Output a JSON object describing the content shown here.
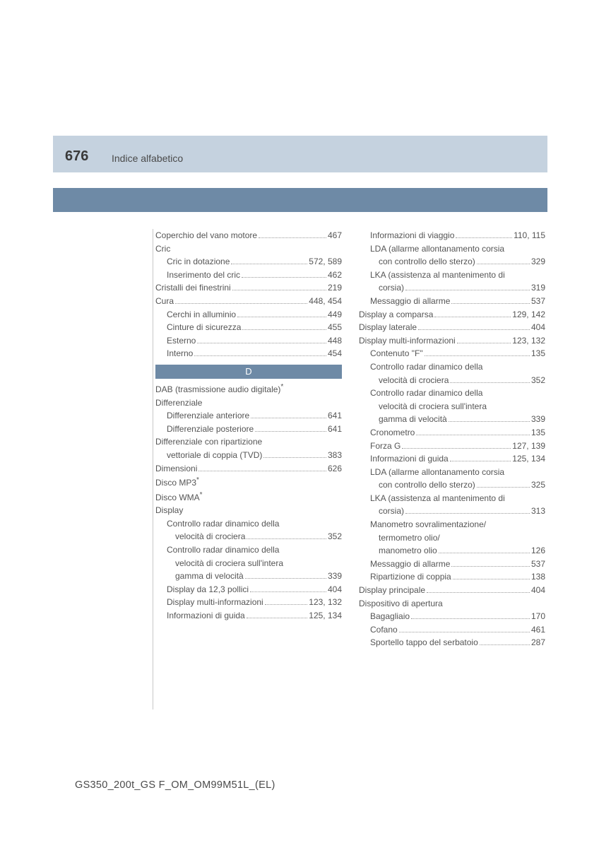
{
  "header": {
    "page_number": "676",
    "title": "Indice alfabetico"
  },
  "colors": {
    "header_band": "#c5d2df",
    "blue_band": "#6e8aa6",
    "text": "#555555",
    "dots": "#999999",
    "vline": "#c8c8c8"
  },
  "section_letter": "D",
  "left_column": [
    {
      "type": "entry",
      "label": "Coperchio del vano motore",
      "page": "467"
    },
    {
      "type": "heading",
      "label": "Cric"
    },
    {
      "type": "sub",
      "label": "Cric in dotazione",
      "page": "572, 589"
    },
    {
      "type": "sub",
      "label": "Inserimento del cric",
      "page": "462"
    },
    {
      "type": "entry",
      "label": "Cristalli dei finestrini",
      "page": "219"
    },
    {
      "type": "entry",
      "label": "Cura",
      "page": "448, 454"
    },
    {
      "type": "sub",
      "label": "Cerchi in alluminio",
      "page": "449"
    },
    {
      "type": "sub",
      "label": "Cinture di sicurezza",
      "page": "455"
    },
    {
      "type": "sub",
      "label": "Esterno",
      "page": "448"
    },
    {
      "type": "sub",
      "label": "Interno",
      "page": "454"
    },
    {
      "type": "letter"
    },
    {
      "type": "heading_ast",
      "label": "DAB (trasmissione audio digitale)"
    },
    {
      "type": "heading",
      "label": "Differenziale"
    },
    {
      "type": "sub",
      "label": "Differenziale anteriore",
      "page": "641"
    },
    {
      "type": "sub",
      "label": "Differenziale posteriore",
      "page": "641"
    },
    {
      "type": "heading",
      "label": "Differenziale con ripartizione"
    },
    {
      "type": "cont",
      "label": "vettoriale di coppia (TVD)",
      "page": "383"
    },
    {
      "type": "entry",
      "label": "Dimensioni",
      "page": "626"
    },
    {
      "type": "heading_ast",
      "label": "Disco MP3"
    },
    {
      "type": "heading_ast",
      "label": "Disco WMA"
    },
    {
      "type": "heading",
      "label": "Display"
    },
    {
      "type": "sub_nl",
      "label": "Controllo radar dinamico della"
    },
    {
      "type": "sub2",
      "label": "velocità di crociera",
      "page": "352"
    },
    {
      "type": "sub_nl",
      "label": "Controllo radar dinamico della"
    },
    {
      "type": "sub2_nl",
      "label": "velocità di crociera sull'intera"
    },
    {
      "type": "sub2",
      "label": "gamma di velocità",
      "page": "339"
    },
    {
      "type": "sub",
      "label": "Display da 12,3 pollici",
      "page": "404"
    },
    {
      "type": "sub",
      "label": "Display multi-informazioni",
      "page": "123, 132"
    },
    {
      "type": "sub",
      "label": "Informazioni di guida",
      "page": "125, 134"
    }
  ],
  "right_column": [
    {
      "type": "sub",
      "label": "Informazioni di viaggio",
      "page": "110, 115"
    },
    {
      "type": "sub_nl",
      "label": "LDA (allarme allontanamento corsia"
    },
    {
      "type": "sub2",
      "label": "con controllo dello sterzo)",
      "page": "329"
    },
    {
      "type": "sub_nl",
      "label": "LKA (assistenza al mantenimento di"
    },
    {
      "type": "sub2",
      "label": "corsia)",
      "page": "319"
    },
    {
      "type": "sub",
      "label": "Messaggio di allarme",
      "page": "537"
    },
    {
      "type": "entry",
      "label": "Display a comparsa",
      "page": "129, 142"
    },
    {
      "type": "entry",
      "label": "Display laterale",
      "page": "404"
    },
    {
      "type": "entry",
      "label": "Display multi-informazioni",
      "page": "123, 132"
    },
    {
      "type": "sub",
      "label": "Contenuto \"F\"",
      "page": "135"
    },
    {
      "type": "sub_nl",
      "label": "Controllo radar dinamico della"
    },
    {
      "type": "sub2",
      "label": "velocità di crociera",
      "page": "352"
    },
    {
      "type": "sub_nl",
      "label": "Controllo radar dinamico della"
    },
    {
      "type": "sub2_nl",
      "label": "velocità di crociera sull'intera"
    },
    {
      "type": "sub2",
      "label": "gamma di velocità",
      "page": "339"
    },
    {
      "type": "sub",
      "label": "Cronometro",
      "page": "135"
    },
    {
      "type": "sub",
      "label": "Forza G",
      "page": "127, 139"
    },
    {
      "type": "sub",
      "label": "Informazioni di guida",
      "page": "125, 134"
    },
    {
      "type": "sub_nl",
      "label": "LDA (allarme allontanamento corsia"
    },
    {
      "type": "sub2",
      "label": "con controllo dello sterzo)",
      "page": "325"
    },
    {
      "type": "sub_nl",
      "label": "LKA (assistenza al mantenimento di"
    },
    {
      "type": "sub2",
      "label": "corsia)",
      "page": "313"
    },
    {
      "type": "sub_nl",
      "label": "Manometro sovralimentazione/"
    },
    {
      "type": "sub2_nl",
      "label": "termometro olio/"
    },
    {
      "type": "sub2",
      "label": "manometro olio",
      "page": "126"
    },
    {
      "type": "sub",
      "label": "Messaggio di allarme",
      "page": "537"
    },
    {
      "type": "sub",
      "label": "Ripartizione di coppia",
      "page": "138"
    },
    {
      "type": "entry",
      "label": "Display principale",
      "page": "404"
    },
    {
      "type": "heading",
      "label": "Dispositivo di apertura"
    },
    {
      "type": "sub",
      "label": "Bagagliaio",
      "page": "170"
    },
    {
      "type": "sub",
      "label": "Cofano",
      "page": "461"
    },
    {
      "type": "sub",
      "label": "Sportello tappo del serbatoio",
      "page": "287"
    }
  ],
  "footer": "GS350_200t_GS F_OM_OM99M51L_(EL)"
}
